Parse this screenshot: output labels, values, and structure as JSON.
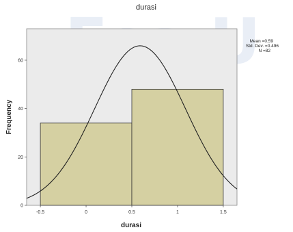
{
  "chart_data": {
    "type": "bar",
    "title": "durasi",
    "xlabel": "durasi",
    "ylabel": "Frequency",
    "bins": [
      {
        "start": -0.5,
        "end": 0.5,
        "value": 34
      },
      {
        "start": 0.5,
        "end": 1.5,
        "value": 48
      }
    ],
    "xlim": [
      -0.65,
      1.65
    ],
    "ylim": [
      0,
      73
    ],
    "x_ticks": [
      -0.5,
      0,
      0.5,
      1,
      1.5
    ],
    "x_tick_labels": [
      "-0.5",
      "0",
      "0.5",
      "1",
      "1.5"
    ],
    "y_ticks": [
      0,
      20,
      40,
      60
    ],
    "y_tick_labels": [
      "0",
      "20",
      "40",
      "60"
    ],
    "normal_curve": {
      "mean": 0.59,
      "std_dev": 0.496,
      "n": 82,
      "bin_width": 1
    },
    "stats_text": [
      "Mean =0.59",
      "Std. Dev. =0.496",
      "N =82"
    ],
    "legend_placement": "right",
    "grid": false,
    "colors": {
      "bar_fill": "#d5d0a2",
      "bar_stroke": "#333333",
      "plot_bg": "#ebebeb",
      "curve": "#222222"
    }
  },
  "watermark": "Esa U"
}
